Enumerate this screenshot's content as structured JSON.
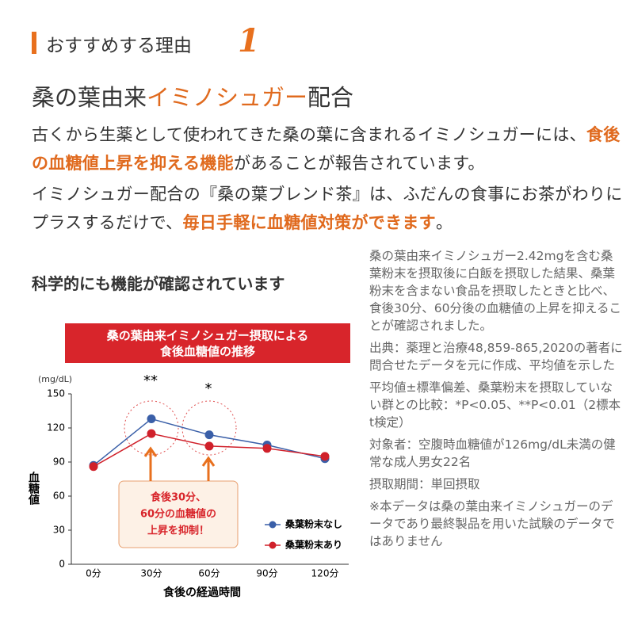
{
  "header": {
    "title": "おすすめする理由",
    "number": "1"
  },
  "main_title": {
    "before": "桑の葉由来",
    "highlight": "イミノシュガー",
    "after": "配合"
  },
  "paragraphs": [
    {
      "before": "古くから生薬として使われてきた桑の葉に含まれるイミノシュガーには、",
      "highlight": "食後の血糖値上昇を抑える機能",
      "after": "があることが報告されています。"
    },
    {
      "before": "イミノシュガー配合の『桑の葉ブレンド茶』は、ふだんの食事にお茶がわりにプラスするだけで、",
      "highlight": "毎日手軽に血糖値対策ができます",
      "after": "。"
    }
  ],
  "subheading": "科学的にも機能が確認されています",
  "notes": [
    "桑の葉由来イミノシュガー2.42mgを含む桑葉粉末を摂取後に白飯を摂取した結果、桑葉粉末を含まない食品を摂取したときと比べ、食後30分、60分後の血糖値の上昇を抑えることが確認されました。",
    "出典：薬理と治療48,859-865,2020の著者に問合せたデータを元に作成、平均値を示した",
    "平均値±標準偏差、桑葉粉末を摂取していない群との比較：*P<0.05、**P<0.01（2標本t検定）",
    "対象者：空腹時血糖値が126mg/dL未満の健常な成人男女22名",
    "摂取期間：単回摂取",
    "※本データは桑の葉由来イミノシュガーのデータであり最終製品を用いた試験のデータではありません"
  ],
  "chart_data": {
    "type": "line",
    "title": [
      "桑の葉由来イミノシュガー摂取による",
      "食後血糖値の推移"
    ],
    "y_unit": "(mg/dL)",
    "y_label": "血糖値",
    "x_label": "食後の経過時間",
    "categories": [
      "0分",
      "30分",
      "60分",
      "90分",
      "120分"
    ],
    "series": [
      {
        "name": "桑葉粉末なし",
        "color": "#3a5fa8",
        "values": [
          87,
          128,
          114,
          105,
          93
        ]
      },
      {
        "name": "桑葉粉末あり",
        "color": "#d0202a",
        "values": [
          86,
          115,
          104,
          102,
          95
        ]
      }
    ],
    "ylim": [
      0,
      150
    ],
    "yticks": [
      0,
      30,
      60,
      90,
      120,
      150
    ],
    "annotations": [
      "**",
      "*"
    ],
    "callout": [
      "食後30分、",
      "60分の血糖値の",
      "上昇を抑制！"
    ]
  }
}
